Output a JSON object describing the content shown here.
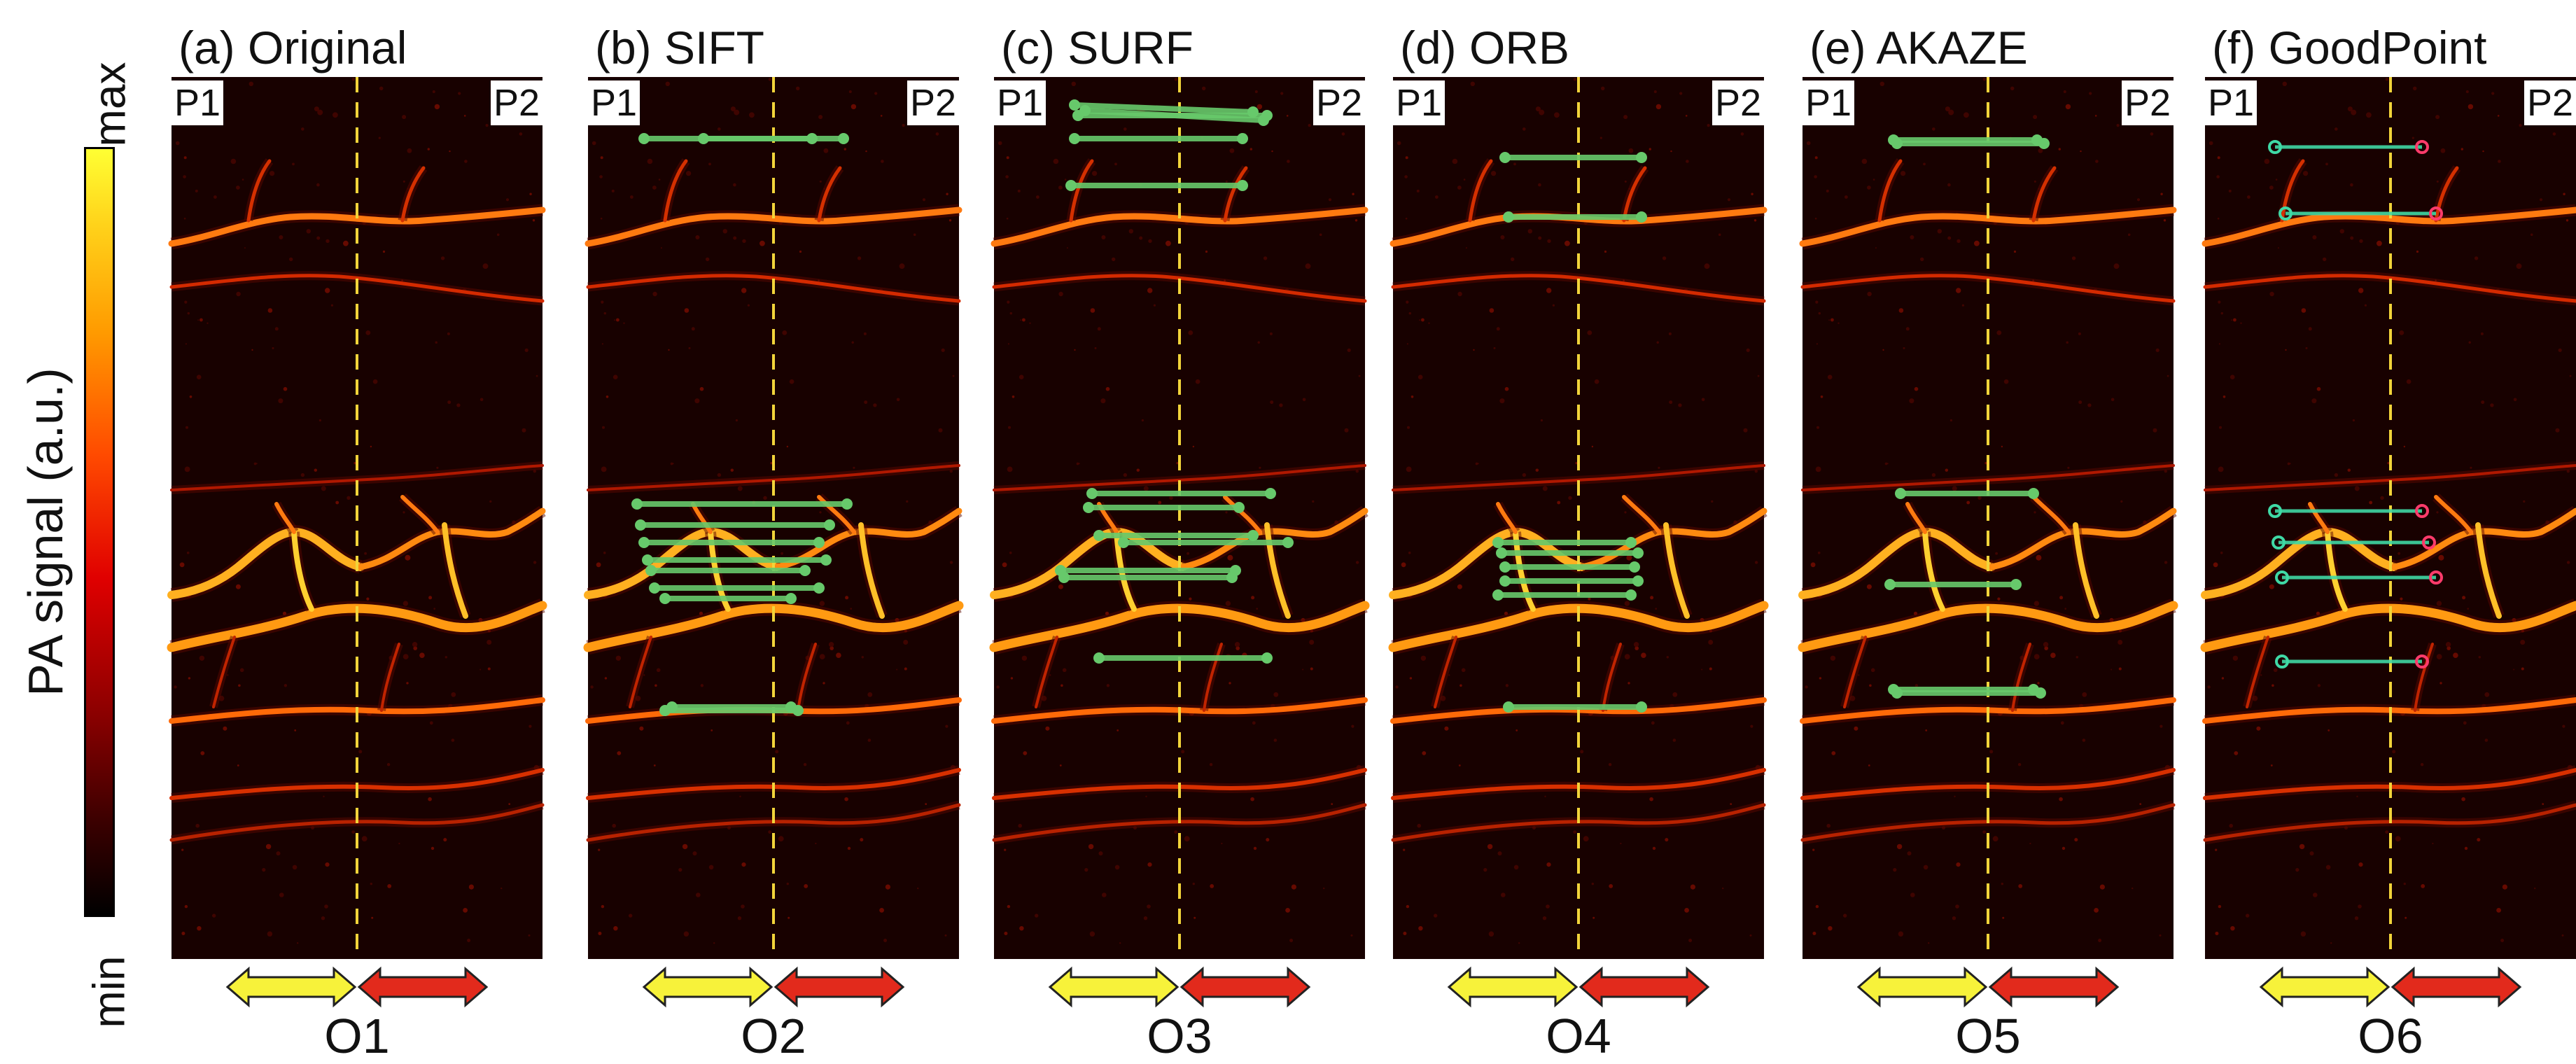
{
  "colorbar": {
    "title": "PA signal (a.u.)",
    "max_label": "max",
    "min_label": "min"
  },
  "panels": [
    {
      "title": "(a) Original",
      "left_tag": "P1",
      "right_tag": "P2",
      "bottom": "O1"
    },
    {
      "title": "(b) SIFT",
      "left_tag": "P1",
      "right_tag": "P2",
      "bottom": "O2"
    },
    {
      "title": "(c) SURF",
      "left_tag": "P1",
      "right_tag": "P2",
      "bottom": "O3"
    },
    {
      "title": "(d) ORB",
      "left_tag": "P1",
      "right_tag": "P2",
      "bottom": "O4"
    },
    {
      "title": "(e) AKAZE",
      "left_tag": "P1",
      "right_tag": "P2",
      "bottom": "O5"
    },
    {
      "title": "(f) GoodPoint",
      "left_tag": "P1",
      "right_tag": "P2",
      "bottom": "O6"
    }
  ],
  "colors": {
    "divider": "#f2d43a",
    "match_line": "#67c96b",
    "goodpoint_line": "#3fd9a5",
    "left_arrow": "#f7f23a",
    "right_arrow": "#e22a1c"
  }
}
